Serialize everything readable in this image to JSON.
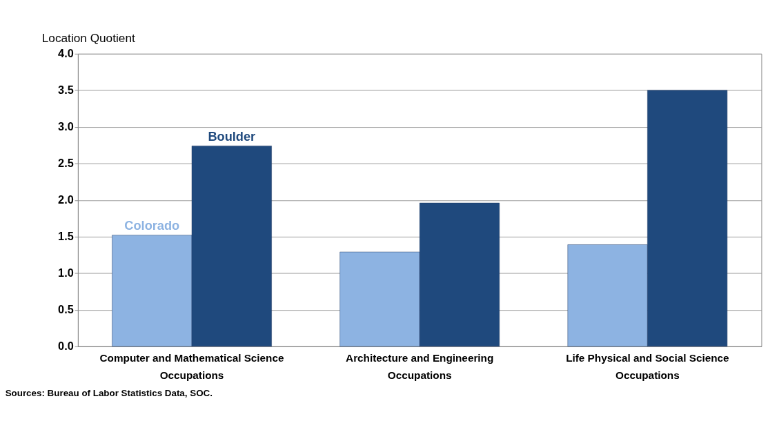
{
  "chart_data": {
    "type": "bar",
    "ylabel": "Location Quotient",
    "categories": [
      "Computer and Mathematical Science Occupations",
      "Architecture and Engineering Occupations",
      "Life Physical and Social Science Occupations"
    ],
    "series": [
      {
        "name": "Colorado",
        "color": "#8db3e2",
        "values": [
          1.52,
          1.29,
          1.39
        ]
      },
      {
        "name": "Boulder",
        "color": "#1f497d",
        "values": [
          2.74,
          1.96,
          3.5
        ]
      }
    ],
    "ylim": [
      0,
      4.0
    ],
    "yticks": [
      {
        "value": 0,
        "label": "0.0"
      },
      {
        "value": 0.5,
        "label": "0.5"
      },
      {
        "value": 1,
        "label": "1.0"
      },
      {
        "value": 1.5,
        "label": "1.5"
      },
      {
        "value": 2,
        "label": "2.0"
      },
      {
        "value": 2.5,
        "label": "2.5"
      },
      {
        "value": 3,
        "label": "3.0"
      },
      {
        "value": 3.5,
        "label": "3.5"
      },
      {
        "value": 4,
        "label": "4.0"
      }
    ],
    "grid": "y",
    "legend": false,
    "annotations": [
      "Sources: Bureau of Labor Statistics Data, SOC."
    ]
  }
}
